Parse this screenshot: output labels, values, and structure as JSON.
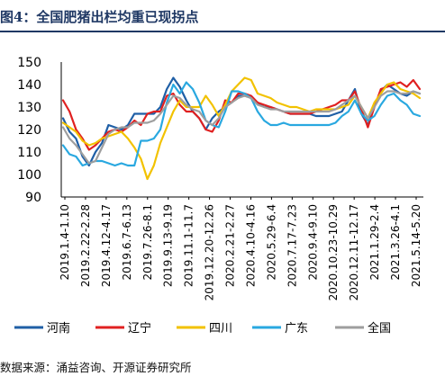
{
  "header": {
    "title": "图4：全国肥猪出栏均重已现拐点"
  },
  "footer": {
    "source": "数据来源：涌益咨询、开源证券研究所"
  },
  "chart_data": {
    "type": "line",
    "title": "",
    "xlabel": "",
    "ylabel": "",
    "ylim": [
      90,
      150
    ],
    "yticks": [
      90,
      100,
      110,
      120,
      130,
      140,
      150
    ],
    "grid": false,
    "legend_position": "bottom",
    "x_tick_labels": [
      "2019.1.4-1.10",
      "2019.2.22-2.28",
      "2019.4.12-4.17",
      "2019.6.7-6.13",
      "2019.7.26-8.1",
      "2019.9.13-9.19",
      "2019.11.1-11.7",
      "2019.12.20-12.26",
      "2020.2.21-2.27",
      "2020.4.10-4.16",
      "2020.5.29-6.4",
      "2020.7.17-7.23",
      "2020.9.4-9.10",
      "2020.10.23-10.29",
      "2020.12.11-12.17",
      "2021.1.29-2.4",
      "2021.3.26-4.1",
      "2021.5.14-5.20"
    ],
    "series": [
      {
        "name": "河南",
        "color": "#1f5fa6",
        "values": [
          125,
          119,
          116,
          108,
          104,
          110,
          114,
          122,
          121,
          120,
          122,
          127,
          127,
          127,
          127,
          130,
          138,
          143,
          139,
          133,
          128,
          125,
          120,
          125,
          128,
          130,
          132,
          135,
          135,
          134,
          132,
          130,
          130,
          129,
          128,
          127,
          127,
          127,
          127,
          126,
          126,
          126,
          127,
          128,
          133,
          138,
          127,
          122,
          130,
          137,
          140,
          138,
          136,
          135,
          137,
          136
        ]
      },
      {
        "name": "辽宁",
        "color": "#e02020",
        "values": [
          133,
          128,
          120,
          116,
          111,
          113,
          116,
          119,
          120,
          119,
          121,
          124,
          122,
          127,
          128,
          128,
          135,
          136,
          131,
          128,
          128,
          125,
          120,
          119,
          124,
          133,
          132,
          136,
          136,
          135,
          132,
          131,
          130,
          129,
          128,
          127,
          127,
          127,
          127,
          128,
          129,
          130,
          131,
          133,
          133,
          137,
          129,
          121,
          130,
          138,
          139,
          140,
          141,
          139,
          142,
          138
        ]
      },
      {
        "name": "四川",
        "color": "#f2c200",
        "values": [
          123,
          121,
          119,
          115,
          113,
          114,
          116,
          117,
          118,
          119,
          116,
          112,
          107,
          98,
          104,
          114,
          121,
          128,
          133,
          130,
          130,
          130,
          135,
          131,
          126,
          131,
          137,
          140,
          143,
          142,
          136,
          135,
          134,
          132,
          131,
          130,
          130,
          129,
          128,
          129,
          129,
          129,
          129,
          130,
          131,
          135,
          130,
          125,
          132,
          136,
          140,
          141,
          138,
          137,
          136,
          134
        ]
      },
      {
        "name": "广东",
        "color": "#29a8e0",
        "values": [
          113,
          109,
          108,
          104,
          105,
          106,
          106,
          105,
          104,
          105,
          104,
          104,
          115,
          115,
          116,
          120,
          132,
          140,
          136,
          141,
          138,
          132,
          124,
          122,
          121,
          128,
          137,
          137,
          136,
          134,
          128,
          124,
          122,
          122,
          123,
          122,
          122,
          122,
          122,
          122,
          122,
          122,
          123,
          126,
          128,
          133,
          127,
          124,
          126,
          131,
          135,
          136,
          133,
          131,
          127,
          126
        ]
      },
      {
        "name": "全国",
        "color": "#9e9e9e",
        "values": [
          121,
          116,
          113,
          109,
          105,
          106,
          112,
          118,
          120,
          121,
          121,
          123,
          123,
          123,
          124,
          127,
          131,
          135,
          134,
          131,
          129,
          128,
          124,
          122,
          125,
          130,
          132,
          134,
          135,
          134,
          131,
          130,
          129,
          129,
          128,
          128,
          128,
          128,
          128,
          128,
          128,
          128,
          129,
          131,
          133,
          135,
          130,
          125,
          130,
          135,
          137,
          137,
          136,
          136,
          137,
          136
        ]
      }
    ]
  }
}
